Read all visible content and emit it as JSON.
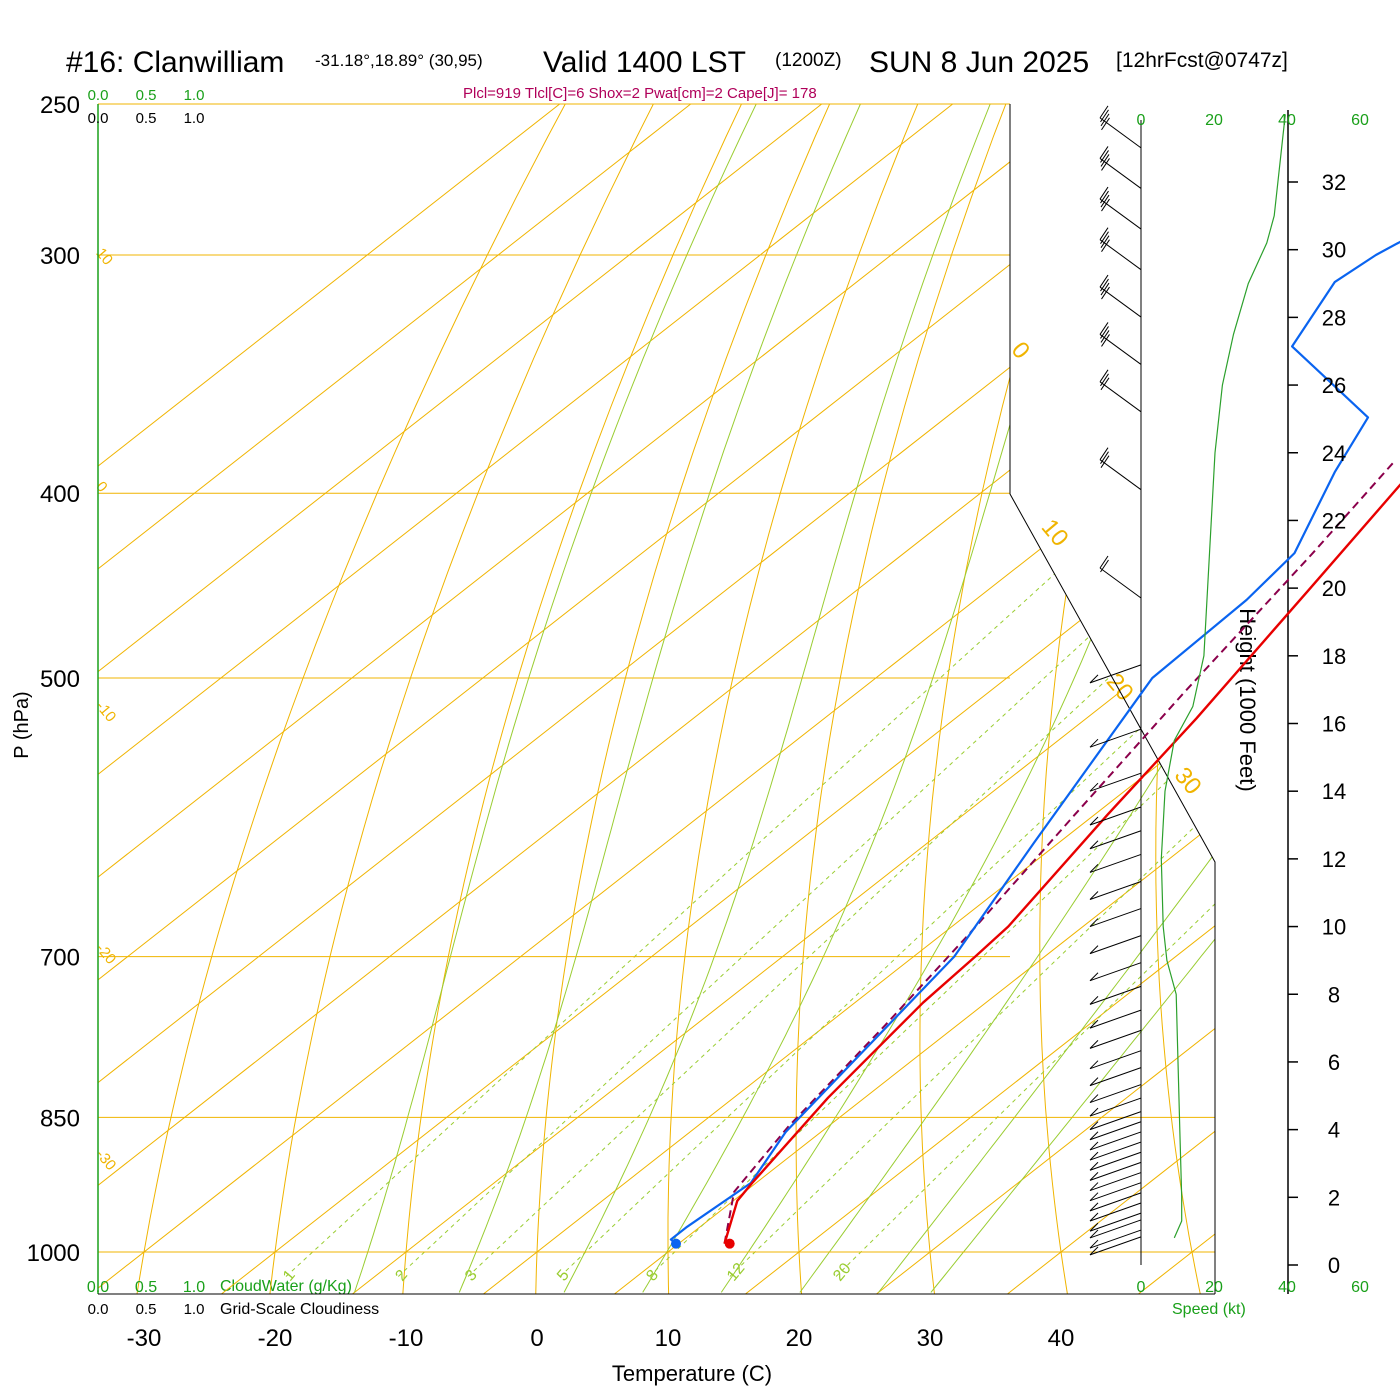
{
  "header": {
    "station": "#16: Clanwilliam",
    "coords": "-31.18°,18.89° (30,95)",
    "valid": "Valid 1400 LST",
    "zulu": "(1200Z)",
    "date": "SUN 8 Jun 2025",
    "forecast": "[12hrFcst@0747z]",
    "indices": "Plcl=919 Tlcl[C]=6 Shox=2 Pwat[cm]=2 Cape[J]= 178"
  },
  "axes": {
    "y_left_label": "P (hPa)",
    "x_label": "Temperature (C)",
    "y_right_label": "Height (1000 Feet)",
    "speed_label": "Speed (kt)",
    "cloudwater_label": "CloudWater (g/Kg)",
    "cloudiness_label": "Grid-Scale Cloudiness"
  },
  "colors": {
    "temperature": "#e80000",
    "dewpoint": "#0a64f0",
    "parcel": "#8b004b",
    "isotherm": "#f0b400",
    "dry_adiabat": "#9acd32",
    "moist_adiabat": "#9acd32",
    "mixing_ratio": "#9acd32",
    "speed_profile": "#2ca02c",
    "header_magenta": "#b0005a",
    "green_text": "#1aa01a"
  },
  "chart_data": {
    "type": "line",
    "title": "#16: Clanwilliam",
    "pressure_ticks": [
      250,
      300,
      400,
      500,
      700,
      850,
      1000
    ],
    "temperature_ticks": [
      -30,
      -20,
      -10,
      0,
      10,
      20,
      30,
      40
    ],
    "xlim": [
      -33.5,
      36
    ],
    "ylim_hpa": [
      1040,
      250
    ],
    "height_ticks_kft": [
      0,
      2,
      4,
      6,
      8,
      10,
      12,
      14,
      16,
      18,
      20,
      22,
      24,
      26,
      28,
      30,
      32
    ],
    "top_scale_green": [
      "0.0",
      "0.5",
      "1.0"
    ],
    "top_scale_black": [
      "0.0",
      "0.5",
      "1.0"
    ],
    "bottom_scale_green": [
      "0.0",
      "0.5",
      "1.0"
    ],
    "bottom_scale_black": [
      "0.0",
      "0.5",
      "1.0"
    ],
    "speed_ticks_top": [
      "0",
      "20",
      "40",
      "60"
    ],
    "speed_ticks_bottom": [
      "0",
      "20",
      "40",
      "60"
    ],
    "isotherm_labels": [
      {
        "text": "10",
        "p": 298,
        "side": "left"
      },
      {
        "text": "0",
        "p": 395,
        "side": "left"
      },
      {
        "text": "-10",
        "p": 515,
        "side": "left"
      },
      {
        "text": "-20",
        "p": 690,
        "side": "left"
      },
      {
        "text": "-30",
        "p": 885,
        "side": "left"
      },
      {
        "text": "0",
        "p": 335,
        "side": "right"
      },
      {
        "text": "10",
        "p": 415,
        "side": "right"
      },
      {
        "text": "20",
        "p": 500,
        "side": "right"
      },
      {
        "text": "30",
        "p": 560,
        "side": "right"
      }
    ],
    "mixing_ratio_labels": [
      "1",
      "2",
      "3",
      "5",
      "8",
      "12",
      "20"
    ],
    "series": [
      {
        "name": "Temperature",
        "points": [
          [
            13.5,
            990
          ],
          [
            10.3,
            940
          ],
          [
            9.7,
            920
          ],
          [
            7.2,
            830
          ],
          [
            5.2,
            740
          ],
          [
            4.7,
            700
          ],
          [
            4.3,
            675
          ],
          [
            1.0,
            590
          ],
          [
            -1.6,
            525
          ],
          [
            -5.5,
            450
          ],
          [
            -9.5,
            385
          ],
          [
            -9.8,
            365
          ],
          [
            -9.8,
            365
          ],
          [
            -8.5,
            335
          ],
          [
            -5.2,
            300
          ],
          [
            -0.2,
            260
          ]
        ]
      },
      {
        "name": "Dewpoint",
        "points": [
          [
            9.8,
            990
          ],
          [
            9.0,
            985
          ],
          [
            9.0,
            970
          ],
          [
            9.6,
            920
          ],
          [
            7.3,
            865
          ],
          [
            5.5,
            790
          ],
          [
            3.1,
            700
          ],
          [
            -1.9,
            610
          ],
          [
            -8.9,
            500
          ],
          [
            -9.3,
            455
          ],
          [
            -10.2,
            430
          ],
          [
            -15.0,
            390
          ],
          [
            -17.8,
            365
          ],
          [
            -30.5,
            335
          ],
          [
            -33.5,
            310
          ],
          [
            -33.0,
            300
          ],
          [
            -30.5,
            280
          ],
          [
            -29.5,
            260
          ]
        ]
      },
      {
        "name": "Parcel",
        "points": [
          [
            13.5,
            990
          ],
          [
            9.2,
            930
          ],
          [
            7.0,
            860
          ],
          [
            4.5,
            760
          ],
          [
            2.0,
            680
          ],
          [
            -1.5,
            590
          ],
          [
            -5.0,
            510
          ],
          [
            -8.8,
            430
          ],
          [
            -11.5,
            385
          ]
        ]
      }
    ],
    "surface_points": {
      "temperature": 13.9,
      "dewpoint": 9.8,
      "p": 990
    },
    "wind_barbs_kft": [
      {
        "h": 0.3,
        "kt": 10
      },
      {
        "h": 0.5,
        "kt": 10
      },
      {
        "h": 0.8,
        "kt": 10
      },
      {
        "h": 1.0,
        "kt": 10
      },
      {
        "h": 1.3,
        "kt": 10
      },
      {
        "h": 1.6,
        "kt": 10
      },
      {
        "h": 1.9,
        "kt": 10
      },
      {
        "h": 2.2,
        "kt": 10
      },
      {
        "h": 2.5,
        "kt": 10
      },
      {
        "h": 2.8,
        "kt": 10
      },
      {
        "h": 3.1,
        "kt": 10
      },
      {
        "h": 3.4,
        "kt": 10
      },
      {
        "h": 3.7,
        "kt": 10
      },
      {
        "h": 4.0,
        "kt": 10
      },
      {
        "h": 4.4,
        "kt": 10
      },
      {
        "h": 4.8,
        "kt": 10
      },
      {
        "h": 5.3,
        "kt": 10
      },
      {
        "h": 5.8,
        "kt": 10
      },
      {
        "h": 6.4,
        "kt": 10
      },
      {
        "h": 7.0,
        "kt": 10
      },
      {
        "h": 7.7,
        "kt": 10
      },
      {
        "h": 8.4,
        "kt": 10
      },
      {
        "h": 9.2,
        "kt": 10
      },
      {
        "h": 10.0,
        "kt": 10
      },
      {
        "h": 10.8,
        "kt": 10
      },
      {
        "h": 11.6,
        "kt": 10
      },
      {
        "h": 12.3,
        "kt": 10
      },
      {
        "h": 13.0,
        "kt": 10
      },
      {
        "h": 14.0,
        "kt": 10
      },
      {
        "h": 15.3,
        "kt": 5
      },
      {
        "h": 17.2,
        "kt": 5
      },
      {
        "h": 20.3,
        "kt": 15
      },
      {
        "h": 23.5,
        "kt": 25
      },
      {
        "h": 25.8,
        "kt": 30
      },
      {
        "h": 27.2,
        "kt": 35
      },
      {
        "h": 28.6,
        "kt": 35
      },
      {
        "h": 30.0,
        "kt": 35
      },
      {
        "h": 31.2,
        "kt": 35
      },
      {
        "h": 32.4,
        "kt": 35
      },
      {
        "h": 33.6,
        "kt": 35
      }
    ],
    "speed_profile": [
      [
        0.8,
        9
      ],
      [
        1.3,
        11
      ],
      [
        2.0,
        11
      ],
      [
        4.0,
        10.5
      ],
      [
        6.0,
        10
      ],
      [
        8.0,
        9.5
      ],
      [
        9.0,
        7
      ],
      [
        10.0,
        6
      ],
      [
        12.0,
        5.5
      ],
      [
        14.0,
        6.5
      ],
      [
        15.5,
        9
      ],
      [
        16.5,
        14
      ],
      [
        18.0,
        17
      ],
      [
        20.0,
        18
      ],
      [
        22.0,
        19
      ],
      [
        24.0,
        20
      ],
      [
        26.0,
        22
      ],
      [
        27.5,
        25
      ],
      [
        29.0,
        29
      ],
      [
        30.2,
        34
      ],
      [
        31.0,
        36
      ],
      [
        33.0,
        38
      ],
      [
        34.0,
        39
      ]
    ]
  }
}
